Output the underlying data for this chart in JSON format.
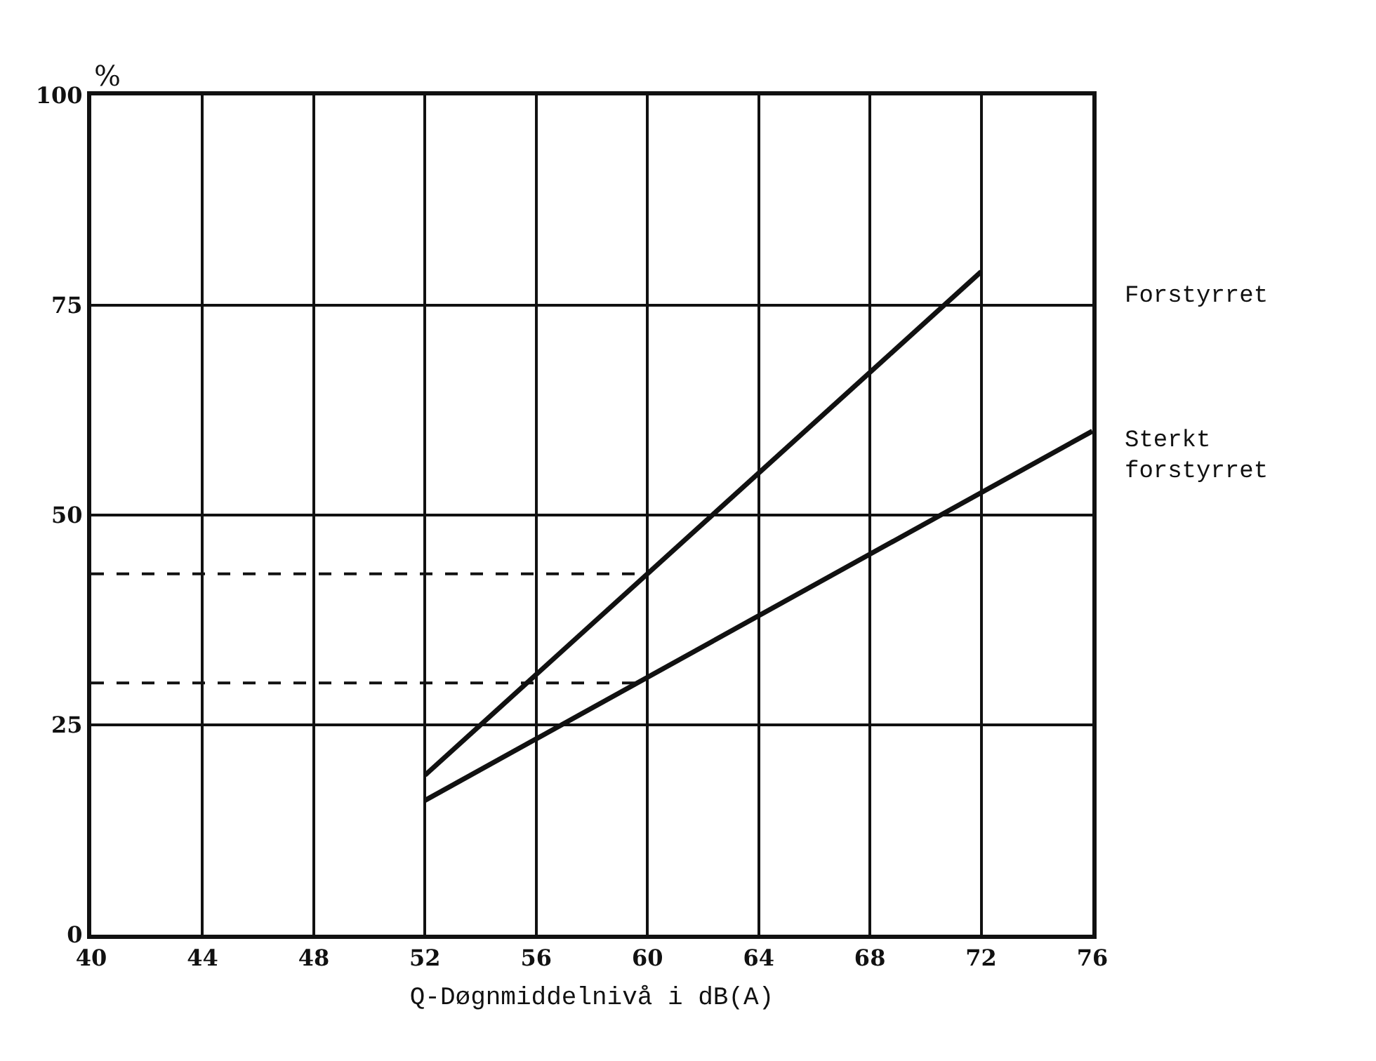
{
  "chart_data": {
    "type": "line",
    "xlabel": "Q-Døgnmiddelnivå i dB(A)",
    "ylabel": "%",
    "xlim": [
      40,
      76
    ],
    "xticks": [
      40,
      44,
      48,
      52,
      56,
      60,
      64,
      68,
      72,
      76
    ],
    "ylim": [
      0,
      100
    ],
    "yticks": [
      0,
      25,
      50,
      75,
      100
    ],
    "grid": true,
    "legend": false,
    "marker": "none",
    "line_style": "solid",
    "series": [
      {
        "name": "Forstyrret",
        "color": "#111111",
        "x": [
          52,
          72
        ],
        "values": [
          19,
          79
        ]
      },
      {
        "name": "Sterkt forstyrret",
        "color": "#111111",
        "x": [
          52,
          76
        ],
        "values": [
          16,
          60
        ]
      },
      {
        "color": "#111111",
        "x": [
          40,
          60
        ],
        "values": [
          43,
          43
        ],
        "line_style": "dashed"
      },
      {
        "color": "#111111",
        "x": [
          40,
          60
        ],
        "values": [
          30,
          30
        ],
        "line_style": "dashed"
      }
    ]
  }
}
